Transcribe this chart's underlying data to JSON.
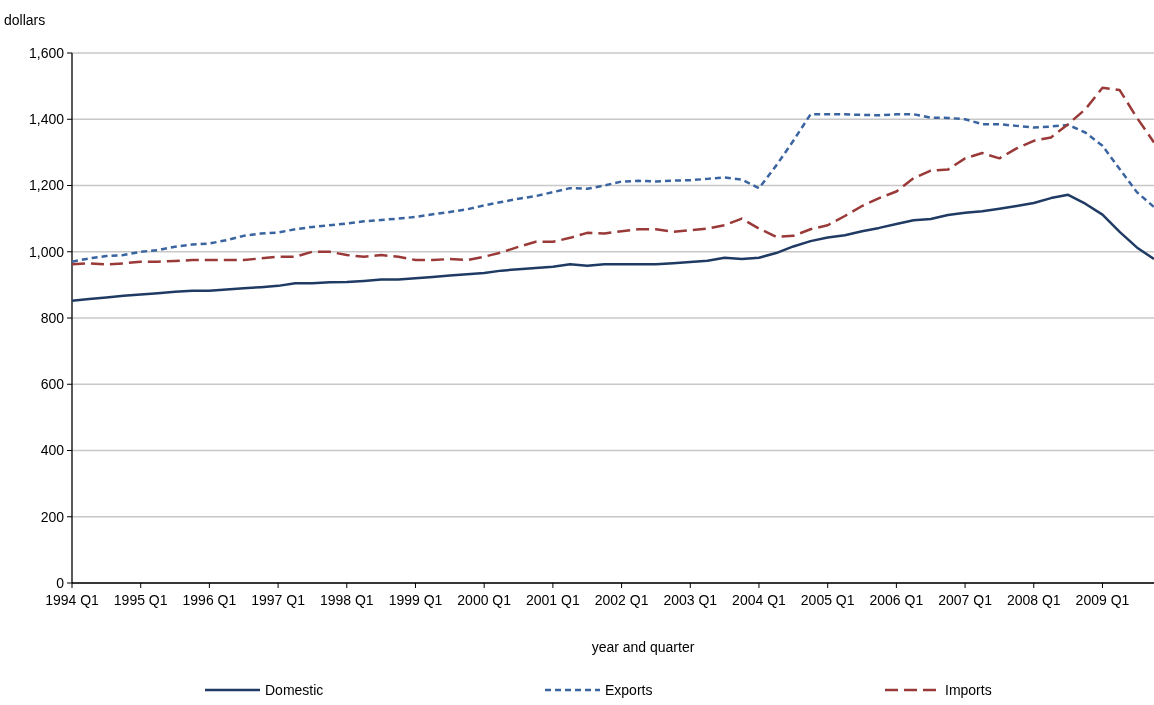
{
  "chart_data": {
    "type": "line",
    "xlabel": "year and quarter",
    "ylabel": "dollars",
    "categories": [
      "1994 Q1",
      null,
      null,
      null,
      "1995 Q1",
      null,
      null,
      null,
      "1996 Q1",
      null,
      null,
      null,
      "1997 Q1",
      null,
      null,
      null,
      "1998 Q1",
      null,
      null,
      null,
      "1999 Q1",
      null,
      null,
      null,
      "2000 Q1",
      null,
      null,
      null,
      "2001 Q1",
      null,
      null,
      null,
      "2002 Q1",
      null,
      null,
      null,
      "2003 Q1",
      null,
      null,
      null,
      "2004 Q1",
      null,
      null,
      null,
      "2005 Q1",
      null,
      null,
      null,
      "2006 Q1",
      null,
      null,
      null,
      "2007 Q1",
      null,
      null,
      null,
      "2008 Q1",
      null,
      null,
      null,
      "2009 Q1",
      null,
      null,
      null
    ],
    "series": [
      {
        "name": "Domestic",
        "color": "#1f3b64",
        "line_style": "solid",
        "values": [
          852,
          857,
          862,
          867,
          871,
          875,
          879,
          882,
          882,
          886,
          890,
          893,
          897,
          905,
          905,
          908,
          909,
          912,
          916,
          916,
          920,
          924,
          928,
          932,
          936,
          943,
          947,
          951,
          955,
          962,
          958,
          962,
          962,
          962,
          962,
          965,
          969,
          973,
          982,
          978,
          982,
          996,
          1016,
          1032,
          1043,
          1050,
          1062,
          1072,
          1084,
          1095,
          1099,
          1111,
          1118,
          1122,
          1130,
          1138,
          1147,
          1162,
          1172,
          1145,
          1112,
          1060,
          1013,
          978
        ]
      },
      {
        "name": "Exports",
        "color": "#3a64a0",
        "line_style": "dotted",
        "values": [
          970,
          980,
          987,
          990,
          1000,
          1005,
          1015,
          1022,
          1025,
          1035,
          1048,
          1055,
          1058,
          1068,
          1075,
          1080,
          1085,
          1092,
          1096,
          1100,
          1105,
          1113,
          1120,
          1128,
          1140,
          1150,
          1160,
          1168,
          1180,
          1192,
          1190,
          1200,
          1212,
          1214,
          1212,
          1215,
          1216,
          1220,
          1224,
          1218,
          1192,
          1260,
          1335,
          1415,
          1415,
          1415,
          1413,
          1412,
          1415,
          1415,
          1405,
          1404,
          1400,
          1385,
          1385,
          1380,
          1375,
          1378,
          1383,
          1360,
          1320,
          1250,
          1180,
          1135
        ]
      },
      {
        "name": "Imports",
        "color": "#9a3a38",
        "line_style": "dashed",
        "values": [
          962,
          965,
          962,
          965,
          970,
          970,
          972,
          975,
          975,
          975,
          975,
          980,
          985,
          985,
          1000,
          1000,
          990,
          985,
          990,
          985,
          975,
          975,
          978,
          975,
          985,
          998,
          1015,
          1030,
          1030,
          1042,
          1057,
          1055,
          1062,
          1068,
          1068,
          1060,
          1065,
          1070,
          1080,
          1100,
          1070,
          1045,
          1048,
          1068,
          1080,
          1108,
          1138,
          1162,
          1182,
          1222,
          1245,
          1248,
          1282,
          1298,
          1282,
          1312,
          1335,
          1345,
          1385,
          1430,
          1495,
          1488,
          1405,
          1330
        ]
      }
    ],
    "ylim": [
      0,
      1600
    ],
    "yticks": [
      0,
      {
        "value": 200,
        "label": "200"
      },
      {
        "value": 400,
        "label": "400"
      },
      {
        "value": 600,
        "label": "600"
      },
      {
        "value": 800,
        "label": "800"
      },
      {
        "value": 1000,
        "label": "1,000"
      },
      {
        "value": 1200,
        "label": "1,200"
      },
      {
        "value": 1400,
        "label": "1,400"
      },
      {
        "value": 1600,
        "label": "1,600"
      }
    ],
    "grid": "y",
    "legend": "bottom"
  }
}
